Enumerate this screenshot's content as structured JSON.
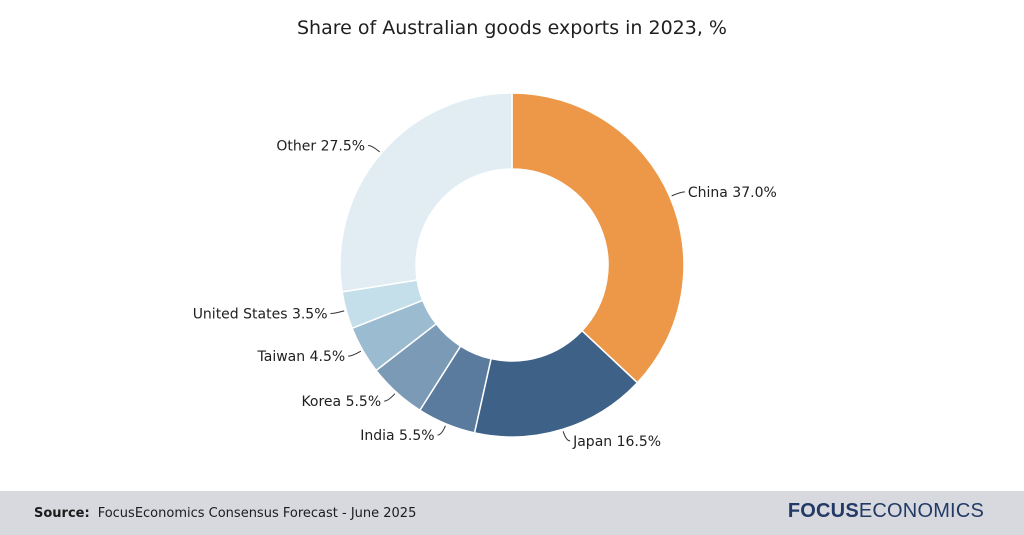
{
  "chart_data": {
    "type": "pie",
    "title": "Share of Australian goods exports in 2023, %",
    "slices": [
      {
        "name": "China",
        "value": 37.0,
        "label": "China 37.0%",
        "color": "#ec9848"
      },
      {
        "name": "Japan",
        "value": 16.5,
        "label": "Japan 16.5%",
        "color": "#3e6187"
      },
      {
        "name": "India",
        "value": 5.5,
        "label": "India 5.5%",
        "color": "#5a7b9d"
      },
      {
        "name": "Korea",
        "value": 5.5,
        "label": "Korea 5.5%",
        "color": "#7b9ab5"
      },
      {
        "name": "Taiwan",
        "value": 4.5,
        "label": "Taiwan 4.5%",
        "color": "#9bbbd0"
      },
      {
        "name": "United States",
        "value": 3.5,
        "label": "United States 3.5%",
        "color": "#c4dfe9"
      },
      {
        "name": "Other",
        "value": 27.5,
        "label": "Other 27.5%",
        "color": "#e1edf2"
      }
    ],
    "style": "donut"
  },
  "footer": {
    "source_label": "Source:",
    "source_text": "FocusEconomics Consensus Forecast - June 2025",
    "brand_bold": "FOCUS",
    "brand_light": "ECONOMICS"
  }
}
